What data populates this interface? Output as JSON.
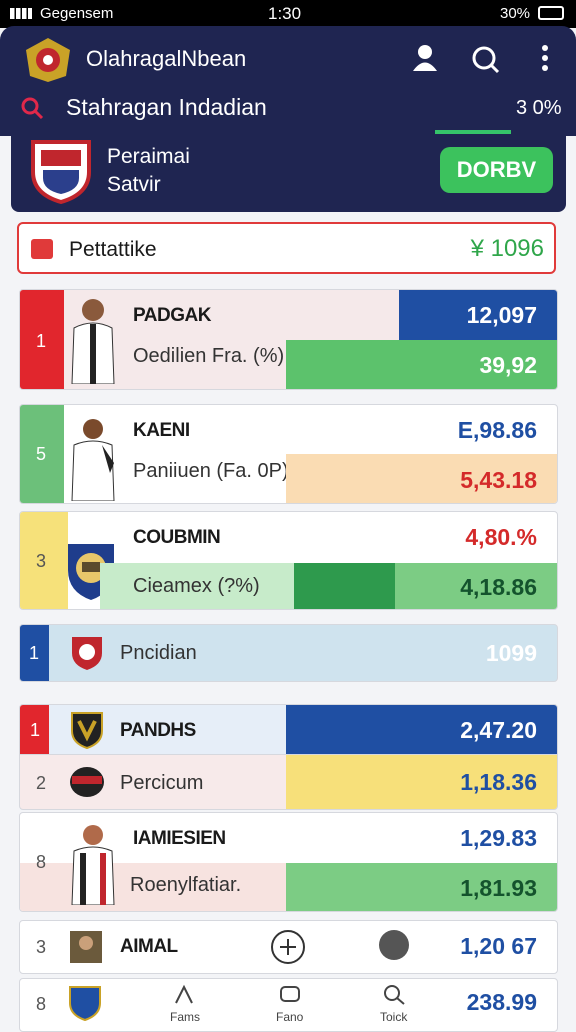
{
  "status_bar": {
    "carrier": "Gegensem",
    "time": "1:30",
    "battery": "30%"
  },
  "header": {
    "title": "OlahragalNbean",
    "search": "Stahragan Indadian",
    "search_value": "3 0%"
  },
  "featured": {
    "line1": "Peraimai",
    "line2": "Satvir",
    "button": "DORBV"
  },
  "summary": {
    "label": "Pettattike",
    "value": "¥ 1096"
  },
  "rows": [
    {
      "rank": "1",
      "name": "PADGAK",
      "subtitle": "Oedilien Fra. (%)",
      "value": "12,097",
      "sub_value": "39,92"
    },
    {
      "rank": "5",
      "name": "KAENI",
      "subtitle": "Paniiuen (Fa. 0P)",
      "value": "E,98.86",
      "sub_value": "5,43.18"
    },
    {
      "rank": "3",
      "name": "COUBMIN",
      "subtitle": "Cieamex (?%)",
      "value": "4,80.%",
      "sub_value": "4,18.86"
    },
    {
      "rank": "1",
      "name": "Pncidian",
      "value": "1099"
    },
    {
      "rank": "1",
      "name": "PANDHS",
      "value": "2,47.20"
    },
    {
      "rank": "2",
      "name": "Percicum",
      "value": "1,18.36"
    },
    {
      "rank": "8",
      "name": "IAMIESIEN",
      "subtitle": "Roenylfatiar.",
      "value": "1,29.83",
      "sub_value": "1,81.93"
    },
    {
      "rank": "3",
      "name": "AIMAL",
      "value": "1,20 67"
    },
    {
      "rank": "8",
      "value": "238.99"
    }
  ],
  "bottom_nav": [
    "Fams",
    "Fano",
    "Toick"
  ]
}
